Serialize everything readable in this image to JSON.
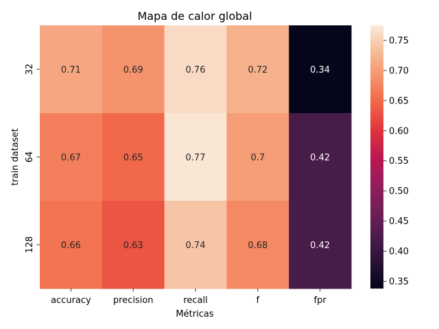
{
  "chart_data": {
    "type": "heatmap",
    "title": "Mapa de calor global",
    "xlabel": "Métricas",
    "ylabel": "train dataset",
    "x_categories": [
      "accuracy",
      "precision",
      "recall",
      "f",
      "fpr"
    ],
    "y_categories": [
      "32",
      "64",
      "128"
    ],
    "values": [
      [
        0.71,
        0.69,
        0.76,
        0.72,
        0.34
      ],
      [
        0.67,
        0.65,
        0.77,
        0.7,
        0.42
      ],
      [
        0.66,
        0.63,
        0.74,
        0.68,
        0.42
      ]
    ],
    "cell_labels": [
      [
        "0.71",
        "0.69",
        "0.76",
        "0.72",
        "0.34"
      ],
      [
        "0.67",
        "0.65",
        "0.77",
        "0.7",
        "0.42"
      ],
      [
        "0.66",
        "0.63",
        "0.74",
        "0.68",
        "0.42"
      ]
    ],
    "colormap": "rocket",
    "vmin": 0.338,
    "vmax": 0.775,
    "colorbar_ticks": [
      "0.35",
      "0.40",
      "0.45",
      "0.50",
      "0.55",
      "0.60",
      "0.65",
      "0.70",
      "0.75"
    ],
    "colorbar_tick_values": [
      0.35,
      0.4,
      0.45,
      0.5,
      0.55,
      0.6,
      0.65,
      0.7,
      0.75
    ]
  }
}
